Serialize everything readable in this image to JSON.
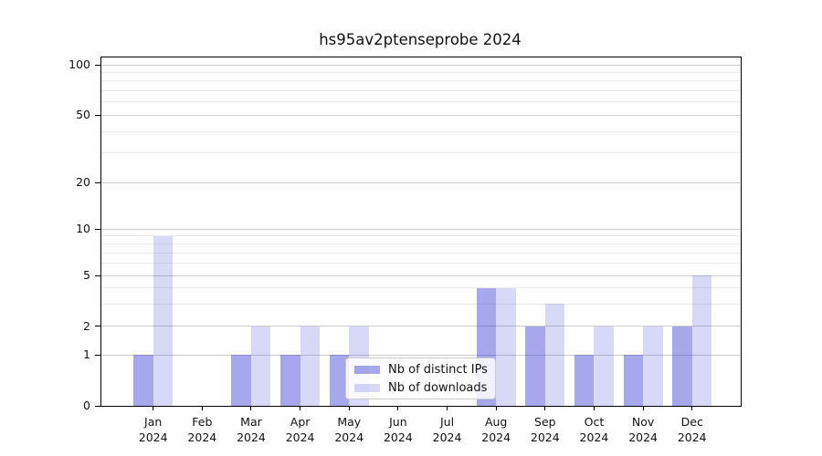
{
  "title": "hs95av2ptenseprobe 2024",
  "legend": {
    "items": [
      {
        "label": "Nb of distinct IPs",
        "color": "rgba(60,60,217,0.45)"
      },
      {
        "label": "Nb of downloads",
        "color": "rgba(60,60,217,0.20)"
      }
    ]
  },
  "chart_data": {
    "type": "bar",
    "title": "hs95av2ptenseprobe 2024",
    "categories": [
      "Jan 2024",
      "Feb 2024",
      "Mar 2024",
      "Apr 2024",
      "May 2024",
      "Jun 2024",
      "Jul 2024",
      "Aug 2024",
      "Sep 2024",
      "Oct 2024",
      "Nov 2024",
      "Dec 2024"
    ],
    "month_labels": [
      "Jan",
      "Feb",
      "Mar",
      "Apr",
      "May",
      "Jun",
      "Jul",
      "Aug",
      "Sep",
      "Oct",
      "Nov",
      "Dec"
    ],
    "year": "2024",
    "series": [
      {
        "name": "Nb of distinct IPs",
        "values": [
          1,
          0,
          1,
          1,
          1,
          0,
          0,
          4,
          2,
          1,
          1,
          2
        ],
        "color": "rgba(60,60,217,0.45)"
      },
      {
        "name": "Nb of downloads",
        "values": [
          9,
          0,
          2,
          2,
          2,
          0,
          0,
          4,
          3,
          2,
          2,
          5
        ],
        "color": "rgba(60,60,217,0.20)"
      }
    ],
    "y_axis": {
      "scale": "symlog",
      "ticks": [
        0,
        1,
        2,
        5,
        10,
        20,
        50,
        100
      ],
      "minor_gridlines": [
        3,
        4,
        6,
        7,
        8,
        9,
        30,
        40,
        60,
        70,
        80,
        90
      ],
      "range": [
        0,
        100
      ]
    },
    "x_axis": {
      "label_format": "month-newline-year"
    },
    "grid": true,
    "legend_position": "lower-center"
  },
  "colors": {
    "grid_major": "#cccccc",
    "grid_minor": "#ebebeb",
    "spine": "#000000",
    "background": "#ffffff"
  }
}
